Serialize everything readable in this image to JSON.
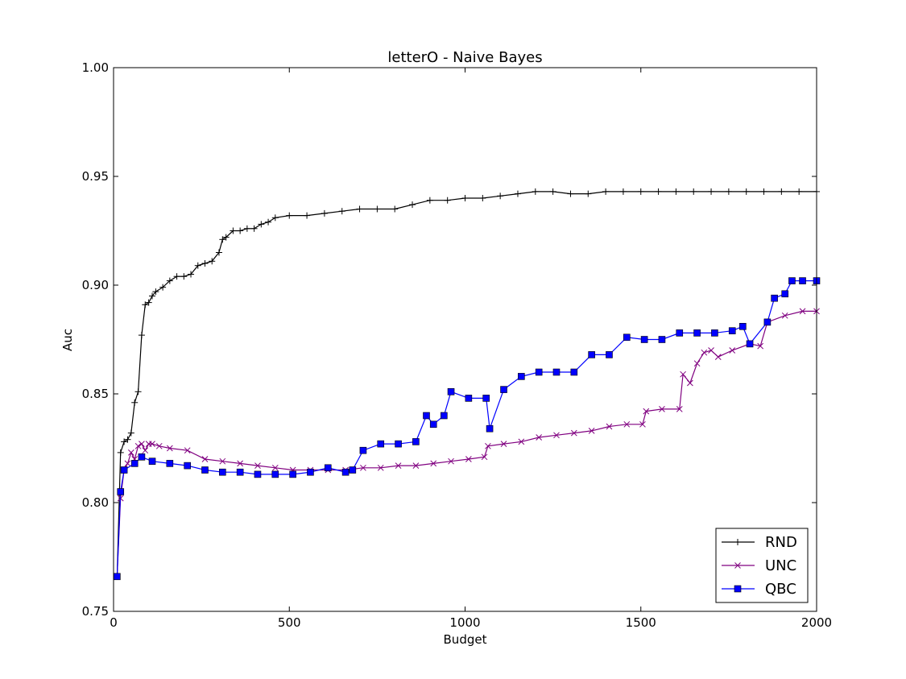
{
  "chart_data": {
    "type": "line",
    "title": "letterO - Naive Bayes",
    "xlabel": "Budget",
    "ylabel": "Auc",
    "xlim": [
      0,
      2000
    ],
    "ylim": [
      0.75,
      1.0
    ],
    "xticks": [
      0,
      500,
      1000,
      1500,
      2000
    ],
    "xtick_labels": [
      "0",
      "500",
      "1000",
      "1500",
      "2000"
    ],
    "yticks": [
      0.75,
      0.8,
      0.85,
      0.9,
      0.95,
      1.0
    ],
    "ytick_labels": [
      "0.75",
      "0.80",
      "0.85",
      "0.90",
      "0.95",
      "1.00"
    ],
    "grid": false,
    "legend_position": "lower-right",
    "series": [
      {
        "name": "RND",
        "color": "#000000",
        "marker": "plus",
        "x": [
          10,
          20,
          30,
          40,
          50,
          60,
          70,
          80,
          90,
          100,
          110,
          120,
          140,
          160,
          180,
          200,
          220,
          240,
          260,
          280,
          300,
          310,
          320,
          340,
          360,
          380,
          400,
          420,
          440,
          460,
          500,
          550,
          600,
          650,
          700,
          750,
          800,
          850,
          900,
          950,
          1000,
          1050,
          1100,
          1150,
          1200,
          1250,
          1300,
          1350,
          1400,
          1450,
          1500,
          1550,
          1600,
          1650,
          1700,
          1750,
          1800,
          1850,
          1900,
          1950,
          2000
        ],
        "y": [
          0.766,
          0.823,
          0.828,
          0.829,
          0.832,
          0.846,
          0.851,
          0.877,
          0.891,
          0.892,
          0.895,
          0.897,
          0.899,
          0.902,
          0.904,
          0.904,
          0.905,
          0.909,
          0.91,
          0.911,
          0.915,
          0.921,
          0.922,
          0.925,
          0.925,
          0.926,
          0.926,
          0.928,
          0.929,
          0.931,
          0.932,
          0.932,
          0.933,
          0.934,
          0.935,
          0.935,
          0.935,
          0.937,
          0.939,
          0.939,
          0.94,
          0.94,
          0.941,
          0.942,
          0.943,
          0.943,
          0.942,
          0.942,
          0.943,
          0.943,
          0.943,
          0.943,
          0.943,
          0.943,
          0.943,
          0.943,
          0.943,
          0.943,
          0.943,
          0.943,
          0.943
        ]
      },
      {
        "name": "UNC",
        "color": "#800080",
        "marker": "x",
        "x": [
          10,
          20,
          30,
          40,
          50,
          60,
          70,
          80,
          90,
          100,
          110,
          130,
          160,
          210,
          260,
          310,
          360,
          410,
          460,
          510,
          560,
          610,
          660,
          710,
          760,
          810,
          860,
          910,
          960,
          1010,
          1055,
          1065,
          1110,
          1160,
          1210,
          1260,
          1310,
          1360,
          1410,
          1460,
          1505,
          1515,
          1560,
          1610,
          1620,
          1640,
          1660,
          1680,
          1700,
          1720,
          1760,
          1810,
          1840,
          1860,
          1910,
          1960,
          2000
        ],
        "y": [
          0.766,
          0.802,
          0.815,
          0.818,
          0.823,
          0.82,
          0.826,
          0.827,
          0.824,
          0.827,
          0.827,
          0.826,
          0.825,
          0.824,
          0.82,
          0.819,
          0.818,
          0.817,
          0.816,
          0.815,
          0.815,
          0.815,
          0.815,
          0.816,
          0.816,
          0.817,
          0.817,
          0.818,
          0.819,
          0.82,
          0.821,
          0.826,
          0.827,
          0.828,
          0.83,
          0.831,
          0.832,
          0.833,
          0.835,
          0.836,
          0.836,
          0.842,
          0.843,
          0.843,
          0.859,
          0.855,
          0.864,
          0.869,
          0.87,
          0.867,
          0.87,
          0.873,
          0.872,
          0.883,
          0.886,
          0.888,
          0.888
        ]
      },
      {
        "name": "QBC",
        "color": "#0000ff",
        "marker": "square",
        "x": [
          10,
          20,
          30,
          60,
          80,
          110,
          160,
          210,
          260,
          310,
          360,
          410,
          460,
          510,
          560,
          610,
          660,
          680,
          710,
          760,
          810,
          860,
          890,
          910,
          940,
          960,
          1010,
          1060,
          1070,
          1110,
          1160,
          1210,
          1260,
          1310,
          1360,
          1410,
          1460,
          1510,
          1560,
          1610,
          1660,
          1710,
          1760,
          1790,
          1810,
          1860,
          1880,
          1910,
          1930,
          1960,
          2000
        ],
        "y": [
          0.766,
          0.805,
          0.815,
          0.818,
          0.821,
          0.819,
          0.818,
          0.817,
          0.815,
          0.814,
          0.814,
          0.813,
          0.813,
          0.813,
          0.814,
          0.816,
          0.814,
          0.815,
          0.824,
          0.827,
          0.827,
          0.828,
          0.84,
          0.836,
          0.84,
          0.851,
          0.848,
          0.848,
          0.834,
          0.852,
          0.858,
          0.86,
          0.86,
          0.86,
          0.868,
          0.868,
          0.876,
          0.875,
          0.875,
          0.878,
          0.878,
          0.878,
          0.879,
          0.881,
          0.873,
          0.883,
          0.894,
          0.896,
          0.902,
          0.902,
          0.902
        ]
      }
    ]
  }
}
